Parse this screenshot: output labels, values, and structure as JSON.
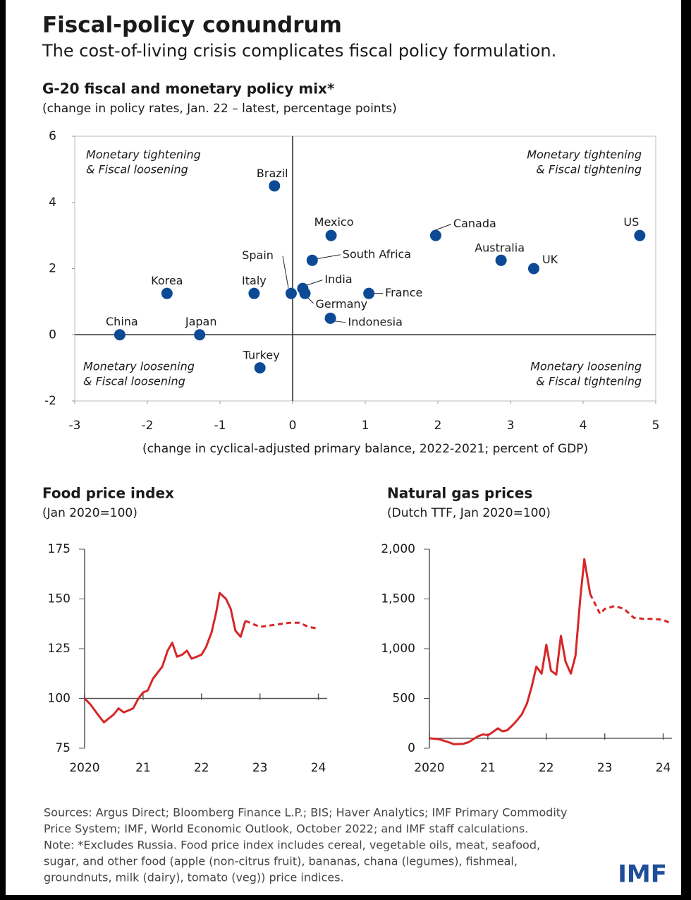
{
  "header": {
    "title": "Fiscal-policy conundrum",
    "subtitle": "The cost-of-living crisis complicates fiscal policy formulation."
  },
  "chart_data": [
    {
      "type": "scatter",
      "title": "G-20 fiscal and monetary policy mix*",
      "subtitle": "(change in policy rates, Jan. 22 – latest, percentage points)",
      "x_label": "(change in cyclical-adjusted primary balance, 2022-2021; percent of GDP)",
      "annotations": [
        [
          "Monetary tightening",
          "& Fiscal loosening"
        ],
        [
          "Monetary tightening",
          "& Fiscal tightening"
        ],
        [
          "Monetary loosening",
          "& Fiscal loosening"
        ],
        [
          "Monetary loosening",
          "& Fiscal tightening"
        ]
      ],
      "xlim": [
        -3,
        5
      ],
      "xticks": [
        -3,
        -2,
        -1,
        0,
        1,
        2,
        3,
        4,
        5
      ],
      "ylim": [
        -2,
        6
      ],
      "yticks": [
        -2,
        0,
        2,
        4,
        6
      ],
      "series": [
        {
          "color": "#0d4a96",
          "labels": [
            "Brazil",
            "Mexico",
            "Canada",
            "US",
            "South Africa",
            "Australia",
            "UK",
            "Spain",
            "India",
            "Germany",
            "Italy",
            "Korea",
            "France",
            "Indonesia",
            "China",
            "Japan",
            "Turkey"
          ],
          "x": [
            -0.25,
            0.53,
            1.97,
            4.78,
            0.27,
            2.87,
            3.32,
            -0.02,
            0.14,
            0.17,
            -0.53,
            -1.73,
            1.05,
            0.52,
            -2.38,
            -1.28,
            -0.45
          ],
          "values": [
            4.5,
            3.0,
            3.0,
            3.0,
            2.25,
            2.25,
            2.0,
            1.25,
            1.4,
            1.25,
            1.25,
            1.25,
            1.25,
            0.5,
            0,
            0,
            -1.0
          ]
        }
      ]
    },
    {
      "type": "line",
      "title": "Food price index",
      "subtitle": "(Jan 2020=100)",
      "xlim": [
        2020,
        2024.15
      ],
      "xticks": [
        2020,
        {
          "value": 2021,
          "label": "21"
        },
        {
          "value": 2022,
          "label": "22"
        },
        {
          "value": 2023,
          "label": "23"
        },
        {
          "value": 2024,
          "label": "24"
        }
      ],
      "ylim": [
        75,
        175
      ],
      "yticks": [
        75,
        100,
        125,
        150,
        175
      ],
      "reference_line": 100,
      "series": [
        {
          "color": "#d62728",
          "style": "solid",
          "x": [
            2020.0,
            2020.1,
            2020.25,
            2020.33,
            2020.5,
            2020.58,
            2020.67,
            2020.83,
            2020.92,
            2021.0,
            2021.08,
            2021.17,
            2021.25,
            2021.33,
            2021.42,
            2021.5,
            2021.58,
            2021.67,
            2021.75,
            2021.83,
            2021.92,
            2022.0,
            2022.08,
            2022.17,
            2022.25,
            2022.31,
            2022.42,
            2022.5,
            2022.58,
            2022.67,
            2022.75
          ],
          "values": [
            100,
            97,
            91,
            88,
            92,
            95,
            93,
            95,
            100,
            103,
            104,
            110,
            113,
            116,
            124,
            128,
            121,
            122,
            124,
            120,
            121,
            122,
            126,
            133,
            143,
            153,
            150,
            145,
            134,
            131,
            139
          ]
        },
        {
          "color": "#d62728",
          "style": "dashed",
          "x": [
            2022.75,
            2022.83,
            2023.0,
            2023.25,
            2023.5,
            2023.67,
            2023.83,
            2024.0
          ],
          "values": [
            139,
            138,
            136,
            137,
            138,
            138,
            136,
            135
          ]
        }
      ]
    },
    {
      "type": "line",
      "title": "Natural gas prices",
      "subtitle": "(Dutch TTF, Jan 2020=100)",
      "xlim": [
        2020,
        2024.15
      ],
      "xticks": [
        2020,
        {
          "value": 2021,
          "label": "21"
        },
        {
          "value": 2022,
          "label": "22"
        },
        {
          "value": 2023,
          "label": "23"
        },
        {
          "value": 2024,
          "label": "24"
        }
      ],
      "ylim": [
        0,
        2000
      ],
      "yticks": [
        0,
        500,
        {
          "value": 1000,
          "label": "1,000"
        },
        {
          "value": 1500,
          "label": "1,500"
        },
        {
          "value": 2000,
          "label": "2,000"
        }
      ],
      "reference_line": 100,
      "series": [
        {
          "color": "#d62728",
          "style": "solid",
          "x": [
            2020.0,
            2020.17,
            2020.33,
            2020.42,
            2020.58,
            2020.67,
            2020.83,
            2020.92,
            2021.0,
            2021.08,
            2021.17,
            2021.25,
            2021.33,
            2021.42,
            2021.5,
            2021.58,
            2021.67,
            2021.75,
            2021.83,
            2021.92,
            2022.0,
            2022.08,
            2022.17,
            2022.25,
            2022.33,
            2022.42,
            2022.5,
            2022.58,
            2022.65,
            2022.75
          ],
          "values": [
            100,
            90,
            60,
            40,
            45,
            60,
            120,
            140,
            130,
            160,
            200,
            170,
            180,
            230,
            280,
            340,
            450,
            620,
            820,
            750,
            1040,
            780,
            740,
            1130,
            870,
            750,
            930,
            1500,
            1900,
            1550
          ]
        },
        {
          "color": "#d62728",
          "style": "dashed",
          "x": [
            2022.75,
            2022.92,
            2023.0,
            2023.17,
            2023.33,
            2023.5,
            2023.67,
            2023.83,
            2024.0,
            2024.15
          ],
          "values": [
            1550,
            1350,
            1400,
            1430,
            1400,
            1310,
            1300,
            1300,
            1290,
            1250
          ]
        }
      ]
    }
  ],
  "footer": {
    "lines": [
      "Sources: Argus Direct; Bloomberg Finance L.P.; BIS; Haver Analytics; IMF Primary Commodity",
      "Price System; IMF, World Economic Outlook, October 2022; and IMF staff calculations.",
      "Note: *Excludes Russia. Food price index includes cereal, vegetable oils, meat, seafood,",
      "sugar, and other food (apple (non-citrus fruit), bananas, chana (legumes), fishmeal,",
      "groundnuts, milk (dairy), tomato (veg)) price indices."
    ],
    "logo": "IMF"
  }
}
